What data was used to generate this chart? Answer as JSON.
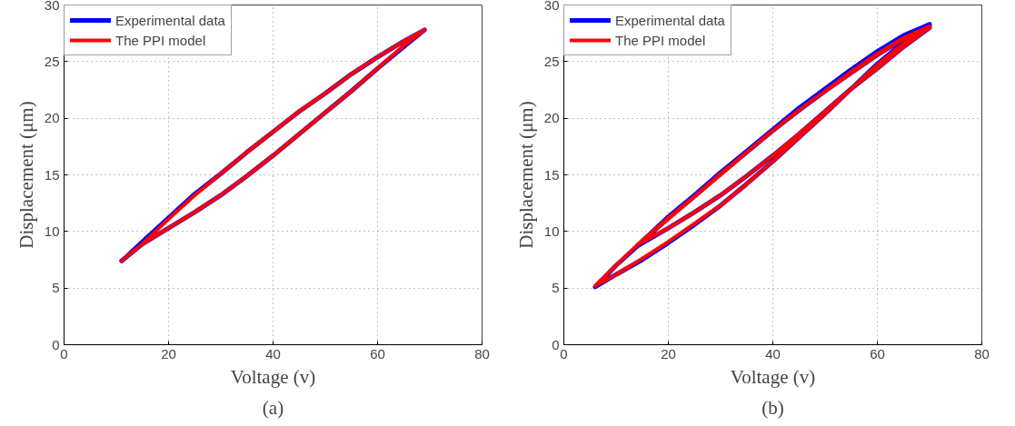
{
  "chart_data": [
    {
      "type": "line",
      "xlabel": "Voltage (v)",
      "ylabel": "Displacement (μm)",
      "annotations": [
        "(a)"
      ],
      "xlim": [
        0,
        80
      ],
      "ylim": [
        0,
        30
      ],
      "xticks": [
        0,
        20,
        40,
        60,
        80
      ],
      "yticks": [
        0,
        5,
        10,
        15,
        20,
        25,
        30
      ],
      "grid": true,
      "legend": "top left",
      "line_style": "solid",
      "marker": "none",
      "series": [
        {
          "name": "Experimental data",
          "color": "#0000ff",
          "x": [
            11,
            15,
            20,
            25,
            30,
            35,
            40,
            45,
            50,
            55,
            60,
            65,
            69,
            65,
            60,
            55,
            50,
            45,
            40,
            35,
            30,
            25,
            20,
            15,
            12
          ],
          "values": [
            7.4,
            8.9,
            10.3,
            11.7,
            13.2,
            14.9,
            16.7,
            18.6,
            20.5,
            22.4,
            24.4,
            26.3,
            27.8,
            26.8,
            25.4,
            23.9,
            22.2,
            20.6,
            18.8,
            17.0,
            15.1,
            13.3,
            11.2,
            9.1,
            7.8
          ]
        },
        {
          "name": "The PPI model",
          "color": "#ff0000",
          "x": [
            11,
            15,
            20,
            25,
            30,
            35,
            40,
            45,
            50,
            55,
            60,
            65,
            69,
            65,
            60,
            55,
            50,
            45,
            40,
            35,
            30,
            25,
            20,
            15,
            12
          ],
          "values": [
            7.4,
            8.9,
            10.3,
            11.7,
            13.2,
            14.9,
            16.7,
            18.6,
            20.5,
            22.4,
            24.4,
            26.4,
            27.8,
            26.8,
            25.4,
            23.9,
            22.2,
            20.6,
            18.8,
            17.0,
            15.1,
            13.2,
            11.1,
            8.9,
            7.8
          ]
        }
      ]
    },
    {
      "type": "line",
      "xlabel": "Voltage (v)",
      "ylabel": "Displacement (μm)",
      "annotations": [
        "(b)"
      ],
      "xlim": [
        0,
        80
      ],
      "ylim": [
        0,
        30
      ],
      "xticks": [
        0,
        20,
        40,
        60,
        80
      ],
      "yticks": [
        0,
        5,
        10,
        15,
        20,
        25,
        30
      ],
      "grid": true,
      "legend": "top left",
      "line_style": "solid",
      "marker": "none",
      "series": [
        {
          "name": "Experimental data",
          "color": "#0000ff",
          "x": [
            70,
            65,
            60,
            55,
            50,
            45,
            40,
            35,
            30,
            25,
            20,
            14,
            20,
            25,
            30,
            35,
            40,
            45,
            50,
            55,
            60,
            65,
            70,
            65,
            60,
            55,
            50,
            45,
            40,
            35,
            30,
            25,
            20,
            15,
            10,
            6,
            10,
            15,
            20,
            25,
            30,
            35,
            40,
            45,
            50,
            55,
            60,
            65,
            70
          ],
          "values": [
            28.3,
            27.3,
            25.9,
            24.3,
            22.6,
            20.9,
            19.0,
            17.1,
            15.2,
            13.2,
            11.3,
            8.7,
            10.3,
            11.7,
            13.2,
            14.9,
            16.7,
            18.6,
            20.6,
            22.6,
            24.4,
            26.3,
            28.0,
            27.0,
            25.6,
            24.0,
            22.4,
            20.7,
            18.9,
            17.0,
            15.1,
            13.1,
            11.2,
            9.1,
            7.0,
            5.1,
            6.2,
            7.5,
            9.0,
            10.6,
            12.3,
            14.2,
            16.2,
            18.3,
            20.4,
            22.6,
            24.8,
            26.7,
            28.2
          ]
        },
        {
          "name": "The PPI model",
          "color": "#ff0000",
          "x": [
            70,
            65,
            60,
            55,
            50,
            45,
            40,
            35,
            30,
            25,
            20,
            14,
            20,
            25,
            30,
            35,
            40,
            45,
            50,
            55,
            60,
            65,
            70,
            65,
            60,
            55,
            50,
            45,
            40,
            35,
            30,
            25,
            20,
            15,
            10,
            6,
            10,
            15,
            20,
            25,
            30,
            35,
            40,
            45,
            50,
            55,
            60,
            65,
            70
          ],
          "values": [
            28.1,
            27.1,
            25.7,
            24.1,
            22.4,
            20.7,
            18.9,
            17.0,
            15.0,
            13.1,
            11.1,
            8.8,
            10.3,
            11.7,
            13.2,
            14.9,
            16.7,
            18.6,
            20.6,
            22.6,
            24.4,
            26.3,
            28.0,
            27.0,
            25.6,
            24.0,
            22.4,
            20.7,
            18.9,
            17.0,
            15.1,
            13.1,
            11.2,
            9.2,
            7.0,
            5.2,
            6.2,
            7.6,
            9.1,
            10.7,
            12.3,
            14.2,
            16.2,
            18.3,
            20.4,
            22.6,
            24.7,
            26.6,
            28.0
          ]
        }
      ]
    }
  ]
}
